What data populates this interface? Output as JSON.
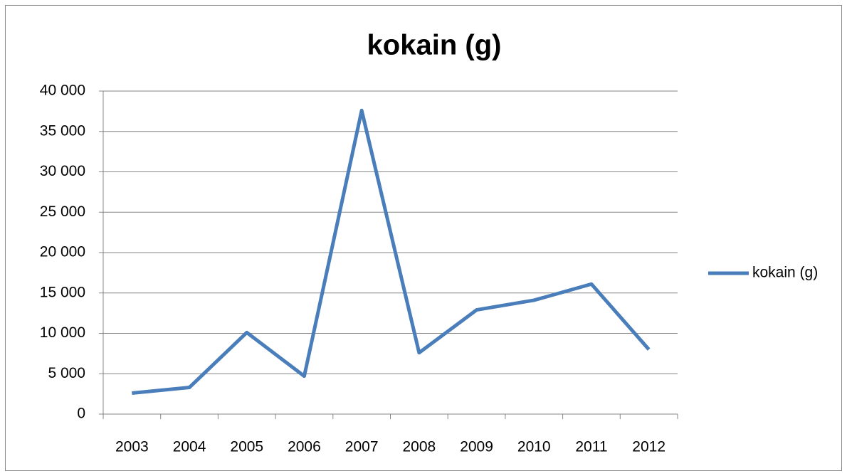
{
  "chart_data": {
    "type": "line",
    "title": "kokain (g)",
    "categories": [
      "2003",
      "2004",
      "2005",
      "2006",
      "2007",
      "2008",
      "2009",
      "2010",
      "2011",
      "2012"
    ],
    "series": [
      {
        "name": "kokain (g)",
        "color": "#4a7ebb",
        "values": [
          2600,
          3300,
          10100,
          4700,
          37600,
          7600,
          12900,
          14100,
          16100,
          8000
        ]
      }
    ],
    "ylim": [
      0,
      40000
    ],
    "yticks": [
      0,
      {
        "value": 5000,
        "label": "5 000"
      },
      {
        "value": 10000,
        "label": "10 000"
      },
      {
        "value": 15000,
        "label": "15 000"
      },
      {
        "value": 20000,
        "label": "20 000"
      },
      {
        "value": 25000,
        "label": "25 000"
      },
      {
        "value": 30000,
        "label": "30 000"
      },
      {
        "value": 35000,
        "label": "35 000"
      },
      {
        "value": 40000,
        "label": "40 000"
      }
    ],
    "grid": true,
    "legend": "right"
  }
}
